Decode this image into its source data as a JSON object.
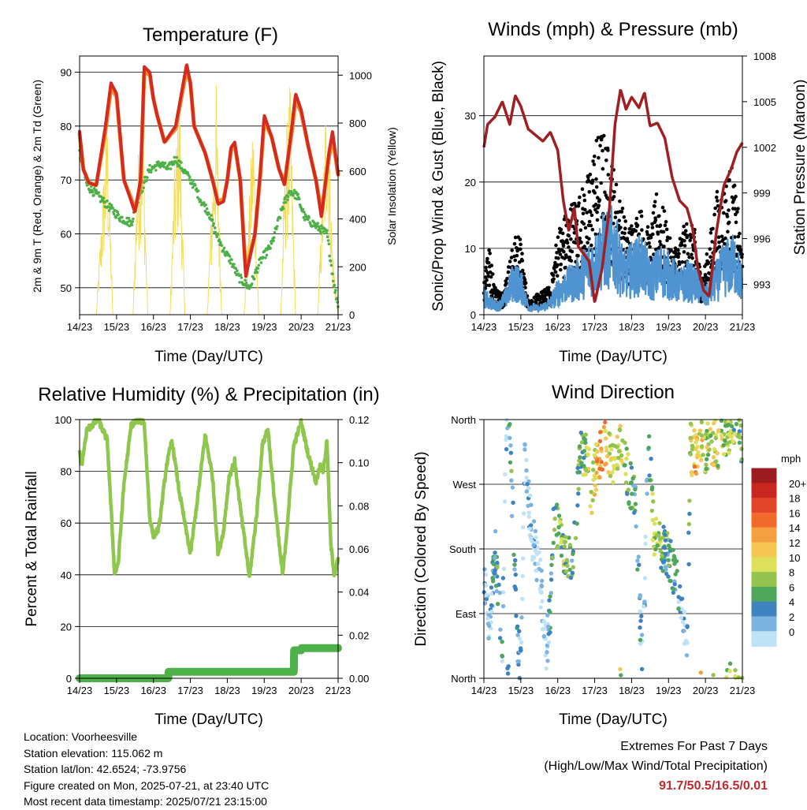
{
  "figure": {
    "x_tick_labels": [
      "14/23",
      "15/23",
      "16/23",
      "17/23",
      "18/23",
      "19/23",
      "20/23",
      "21/23"
    ],
    "x_axis_label": "Time (Day/UTC)"
  },
  "info": {
    "location": "Location: Voorheesville",
    "elevation": "Station elevation: 115.062 m",
    "latlon": "Station lat/lon: 42.6524; -73.9756",
    "created": "Figure created on Mon, 2025-07-21, at 23:40 UTC",
    "recent": "Most recent data timestamp: 2025/07/21 23:15:00"
  },
  "extremes": {
    "heading": "Extremes For Past 7 Days",
    "subheading": "(High/Low/Max Wind/Total Precipitation)",
    "values": "91.7/50.5/16.5/0.01",
    "color": "#c0282d"
  },
  "colors": {
    "temp_2m": "#d42a20",
    "temp_9m": "#f08a2c",
    "dewpoint": "#4eb048",
    "solar": "#f5dc5a",
    "gust": "#000000",
    "wind": "#4f93d1",
    "pressure": "#a01f23",
    "rh": "#8ec64e",
    "rain": "#4eb048"
  },
  "chart_data": [
    {
      "type": "line",
      "title": "Temperature (F)",
      "xlabel": "Time (Day/UTC)",
      "ylabel": "2m & 9m T (Red, Orange) & 2m Td (Green)",
      "ylabel_right": "Solar Insolation (Yellow)",
      "x_unit": "days since 14/23",
      "xlim": [
        0,
        7
      ],
      "ylim": [
        45,
        93
      ],
      "y_ticks": [
        50,
        60,
        70,
        80,
        90
      ],
      "y2lim": [
        0,
        1080
      ],
      "y2_ticks": [
        0,
        200,
        400,
        600,
        800,
        1000
      ],
      "grid": true,
      "series": [
        {
          "name": "2m T",
          "axis": "left",
          "x": [
            0,
            0.1,
            0.25,
            0.45,
            0.7,
            0.85,
            1.0,
            1.2,
            1.4,
            1.5,
            1.65,
            1.75,
            1.9,
            2.0,
            2.1,
            2.3,
            2.6,
            2.9,
            3.0,
            3.1,
            3.4,
            3.6,
            3.75,
            3.9,
            4.0,
            4.1,
            4.2,
            4.35,
            4.5,
            4.75,
            4.9,
            5.0,
            5.2,
            5.4,
            5.55,
            5.75,
            5.85,
            6.0,
            6.2,
            6.4,
            6.55,
            6.75,
            6.85,
            7.0
          ],
          "y": [
            79,
            72,
            69.5,
            69,
            80,
            88,
            86,
            70,
            66,
            64,
            70,
            91,
            90,
            85,
            82,
            77,
            80,
            91.5,
            88,
            80,
            75,
            70,
            65.5,
            66,
            70,
            76,
            77,
            70,
            52,
            60,
            72,
            82,
            78,
            72,
            69,
            80,
            86,
            83,
            76,
            70,
            63,
            75,
            79,
            71
          ]
        },
        {
          "name": "9m T",
          "axis": "left",
          "x": [
            0,
            0.1,
            0.25,
            0.45,
            0.7,
            0.85,
            1.0,
            1.2,
            1.4,
            1.5,
            1.65,
            1.75,
            1.9,
            2.0,
            2.1,
            2.3,
            2.6,
            2.9,
            3.0,
            3.1,
            3.4,
            3.6,
            3.75,
            3.9,
            4.0,
            4.1,
            4.2,
            4.35,
            4.5,
            4.75,
            4.9,
            5.0,
            5.2,
            5.4,
            5.55,
            5.75,
            5.85,
            6.0,
            6.2,
            6.4,
            6.55,
            6.75,
            6.85,
            7.0
          ],
          "y": [
            78.5,
            72,
            69.5,
            69,
            79,
            87,
            85.5,
            70,
            66.5,
            64.5,
            69,
            90,
            89.5,
            85,
            82,
            77,
            79.5,
            90.5,
            88,
            80,
            75,
            70,
            66,
            66.5,
            70,
            75.5,
            76.5,
            70,
            53,
            60,
            71.5,
            81,
            78,
            72,
            69.5,
            79,
            85,
            82.5,
            76,
            70,
            64,
            74,
            78,
            71
          ]
        },
        {
          "name": "2m Td",
          "axis": "left",
          "x": [
            0,
            0.2,
            0.5,
            0.8,
            1.1,
            1.4,
            1.6,
            1.9,
            2.2,
            2.4,
            2.6,
            2.9,
            3.1,
            3.3,
            3.5,
            3.7,
            3.9,
            4.1,
            4.3,
            4.6,
            4.9,
            5.2,
            5.5,
            5.7,
            5.9,
            6.1,
            6.3,
            6.5,
            6.7,
            6.8,
            6.9,
            7.0
          ],
          "y": [
            75,
            69,
            67,
            65,
            63,
            62,
            67,
            72,
            73,
            72,
            74,
            71,
            69,
            66,
            64,
            60,
            57,
            55,
            52,
            50,
            55,
            58,
            65,
            68,
            67,
            63,
            62,
            61,
            60,
            55,
            50,
            47
          ]
        },
        {
          "name": "Solar Insolation",
          "axis": "right",
          "x": [
            0,
            0.45,
            0.55,
            0.75,
            0.9,
            1.3,
            1.45,
            1.55,
            1.7,
            1.85,
            2.3,
            2.45,
            2.55,
            2.7,
            2.85,
            3.3,
            3.45,
            3.55,
            3.7,
            3.85,
            4.3,
            4.45,
            4.55,
            4.7,
            4.85,
            5.3,
            5.45,
            5.55,
            5.7,
            5.85,
            6.3,
            6.45,
            6.55,
            6.7,
            6.85,
            7.0
          ],
          "y": [
            0,
            0,
            300,
            900,
            0,
            0,
            0,
            600,
            950,
            0,
            0,
            0,
            550,
            1000,
            0,
            0,
            0,
            400,
            980,
            0,
            0,
            0,
            300,
            900,
            0,
            0,
            0,
            650,
            1000,
            0,
            0,
            0,
            450,
            1050,
            300,
            0
          ]
        }
      ]
    },
    {
      "type": "scatter",
      "title": "Winds (mph) & Pressure (mb)",
      "xlabel": "Time (Day/UTC)",
      "ylabel": "Sonic/Prop Wind & Gust (Blue, Black)",
      "ylabel_right": "Station Pressure (Maroon)",
      "x_unit": "days since 14/23",
      "xlim": [
        0,
        7
      ],
      "ylim": [
        0,
        39
      ],
      "y_ticks": [
        0,
        10,
        20,
        30
      ],
      "y2lim": [
        991,
        1008
      ],
      "y2_ticks": [
        993,
        996,
        999,
        1002,
        1005,
        1008
      ],
      "grid": true,
      "series": [
        {
          "name": "Gust",
          "axis": "left",
          "x": [
            0,
            0.1,
            0.3,
            0.5,
            0.8,
            0.95,
            1.2,
            1.5,
            1.8,
            2.0,
            2.2,
            2.4,
            2.6,
            2.8,
            3.0,
            3.2,
            3.5,
            3.7,
            3.9,
            4.1,
            4.3,
            4.5,
            4.7,
            4.9,
            5.1,
            5.3,
            5.5,
            5.7,
            5.9,
            6.1,
            6.3,
            6.5,
            6.7,
            6.9,
            7.0
          ],
          "y": [
            5,
            11,
            4,
            3,
            10,
            12,
            2,
            3,
            4,
            12,
            14,
            16,
            17,
            19,
            24,
            26,
            21,
            16,
            12,
            14,
            15,
            11,
            18,
            14,
            9,
            11,
            13,
            12,
            5,
            10,
            17,
            18,
            21,
            14,
            8
          ]
        },
        {
          "name": "Wind",
          "axis": "left",
          "x": [
            0,
            0.2,
            0.4,
            0.6,
            0.8,
            1.0,
            1.2,
            1.5,
            1.8,
            2.0,
            2.2,
            2.5,
            2.8,
            3.0,
            3.2,
            3.5,
            3.8,
            4.0,
            4.3,
            4.5,
            4.8,
            5.0,
            5.3,
            5.5,
            5.8,
            6.0,
            6.3,
            6.5,
            6.8,
            7.0
          ],
          "y": [
            3,
            2,
            1.5,
            3,
            6,
            5,
            1.5,
            1,
            2,
            4,
            5,
            6,
            8,
            9,
            11,
            12,
            7,
            8,
            9,
            6,
            8,
            7,
            5,
            6,
            5,
            3,
            6,
            8,
            9,
            5
          ]
        },
        {
          "name": "Station Pressure",
          "axis": "right",
          "x": [
            0,
            0.1,
            0.3,
            0.5,
            0.7,
            0.85,
            1.0,
            1.2,
            1.4,
            1.6,
            1.8,
            1.9,
            2.0,
            2.15,
            2.3,
            2.45,
            2.55,
            2.7,
            2.85,
            3.0,
            3.2,
            3.4,
            3.55,
            3.7,
            3.85,
            4.0,
            4.2,
            4.35,
            4.5,
            4.7,
            4.9,
            5.1,
            5.3,
            5.5,
            5.65,
            5.8,
            5.95,
            6.1,
            6.3,
            6.5,
            6.7,
            6.85,
            7.0
          ],
          "y": [
            1002,
            1003.5,
            1004,
            1005,
            1003.5,
            1005.4,
            1004.7,
            1003.2,
            1002.8,
            1002.4,
            1003,
            1002.4,
            1001.8,
            998.5,
            996.5,
            998,
            995.5,
            995,
            994.5,
            991.8,
            994,
            998,
            1003.5,
            1005.8,
            1004.5,
            1005.3,
            1004.6,
            1005.6,
            1003.4,
            1003.6,
            1002.6,
            1000,
            998.5,
            998,
            996.7,
            994,
            992.6,
            992.2,
            996.5,
            999.5,
            1000.6,
            1001.7,
            1002.3
          ]
        }
      ]
    },
    {
      "type": "line",
      "title": "Relative Humidity (%) & Precipitation (in)",
      "xlabel": "Time (Day/UTC)",
      "ylabel": "Percent & Total Rainfall",
      "x_unit": "days since 14/23",
      "xlim": [
        0,
        7
      ],
      "ylim": [
        0,
        100
      ],
      "y_ticks": [
        0,
        20,
        40,
        60,
        80,
        100
      ],
      "y2lim": [
        0,
        0.12
      ],
      "y2_ticks": [
        "0.00",
        "0.02",
        "0.04",
        "0.06",
        "0.08",
        "0.10",
        "0.12"
      ],
      "grid": true,
      "series": [
        {
          "name": "Relative Humidity",
          "axis": "left",
          "x": [
            0,
            0.05,
            0.2,
            0.35,
            0.5,
            0.75,
            0.95,
            1.05,
            1.2,
            1.4,
            1.6,
            1.75,
            1.82,
            1.9,
            2.0,
            2.15,
            2.35,
            2.5,
            2.7,
            2.85,
            3.0,
            3.2,
            3.4,
            3.6,
            3.75,
            3.9,
            4.05,
            4.2,
            4.35,
            4.5,
            4.6,
            4.8,
            4.95,
            5.1,
            5.2,
            5.4,
            5.5,
            5.6,
            5.8,
            6.0,
            6.2,
            6.4,
            6.5,
            6.6,
            6.7,
            6.8,
            6.9,
            7.0
          ],
          "y": [
            88,
            82,
            96,
            98,
            100,
            92,
            40,
            45,
            75,
            98,
            100,
            99,
            82,
            62,
            55,
            58,
            82,
            92,
            72,
            60,
            48,
            70,
            94,
            78,
            48,
            57,
            78,
            84,
            66,
            50,
            39,
            64,
            90,
            97,
            80,
            52,
            40,
            55,
            90,
            99,
            86,
            76,
            82,
            80,
            92,
            52,
            40,
            46
          ]
        },
        {
          "name": "Total Rainfall",
          "axis": "right",
          "x": [
            0,
            1.6,
            1.85,
            2.4,
            2.41,
            5.8,
            5.81,
            6.0,
            6.01,
            7.0
          ],
          "y": [
            0,
            0,
            0,
            0,
            0.003,
            0.003,
            0.013,
            0.013,
            0.014,
            0.014
          ]
        }
      ]
    },
    {
      "type": "scatter",
      "title": "Wind Direction",
      "xlabel": "Time (Day/UTC)",
      "ylabel": "Direction (Colored By Speed)",
      "x_unit": "days since 14/23",
      "xlim": [
        0,
        7
      ],
      "y_ticks": [
        "North",
        "East",
        "South",
        "West",
        "North"
      ],
      "ylim_degrees": [
        0,
        360
      ],
      "grid": true,
      "legend": {
        "title": "mph",
        "labels": [
          "20+",
          "18",
          "16",
          "14",
          "12",
          "10",
          "8",
          "6",
          "4",
          "2",
          "0"
        ],
        "colors": [
          "#9b1b1e",
          "#c8261f",
          "#e0462a",
          "#f06a2c",
          "#f5a040",
          "#f5c752",
          "#dde05a",
          "#95c34f",
          "#4ea75a",
          "#3e82c0",
          "#7cb3e0",
          "#bfe2f6"
        ],
        "position": "right"
      },
      "series": [
        {
          "name": "Direction",
          "x": [
            0.05,
            0.15,
            0.3,
            0.5,
            0.6,
            0.7,
            0.9,
            1.0,
            1.1,
            1.3,
            1.5,
            1.7,
            1.8,
            1.9,
            2.1,
            2.2,
            2.4,
            2.6,
            2.8,
            2.9,
            3.0,
            3.05,
            3.15,
            3.3,
            3.5,
            3.7,
            3.9,
            4.1,
            4.3,
            4.45,
            4.6,
            4.7,
            4.9,
            5.1,
            5.3,
            5.5,
            5.6,
            5.7,
            5.9,
            6.0,
            6.2,
            6.4,
            6.6,
            6.8,
            6.95
          ],
          "y": [
            120,
            80,
            180,
            40,
            350,
            340,
            60,
            20,
            300,
            200,
            150,
            40,
            100,
            220,
            190,
            180,
            150,
            310,
            320,
            250,
            280,
            300,
            310,
            330,
            300,
            340,
            280,
            250,
            10,
            350,
            200,
            190,
            180,
            160,
            120,
            60,
            320,
            310,
            340,
            320,
            330,
            325,
            350,
            340,
            330
          ],
          "speed": [
            3,
            1,
            6,
            4,
            2,
            5,
            6,
            3,
            1,
            2,
            1,
            0,
            5,
            7,
            9,
            8,
            6,
            7,
            9,
            10,
            12,
            14,
            16,
            13,
            10,
            11,
            8,
            5,
            3,
            4,
            10,
            9,
            6,
            7,
            3,
            2,
            10,
            14,
            12,
            9,
            11,
            10,
            9,
            8,
            7
          ]
        }
      ]
    }
  ]
}
